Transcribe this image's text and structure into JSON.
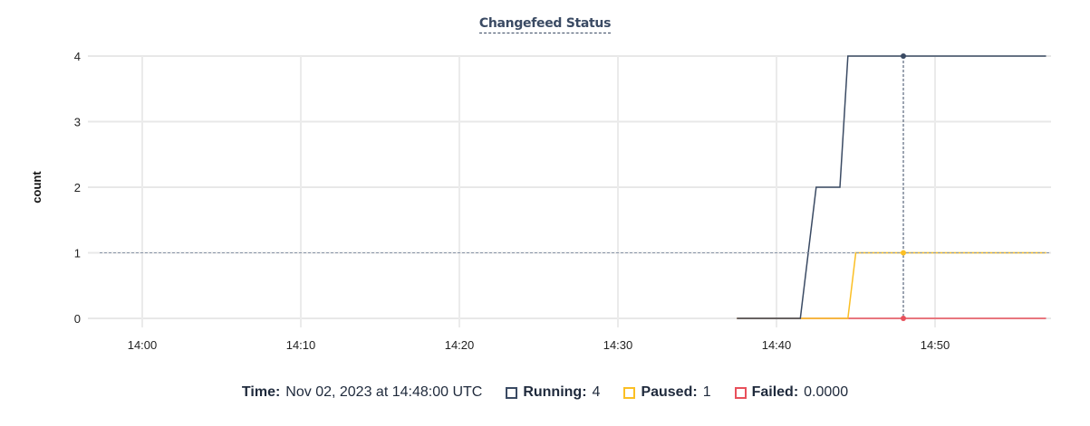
{
  "chart_data": {
    "type": "line",
    "title": "Changefeed Status",
    "ylabel": "count",
    "xlabel": "",
    "ylim": [
      0,
      4
    ],
    "yticks": [
      "0",
      "1",
      "2",
      "3",
      "4"
    ],
    "xlim": [
      "13:57:20",
      "14:57:20"
    ],
    "xticks": [
      "14:00",
      "14:10",
      "14:20",
      "14:30",
      "14:40",
      "14:50"
    ],
    "grid": true,
    "series": [
      {
        "name": "Running",
        "color": "#3a4a63",
        "points": [
          [
            "14:37:30",
            0
          ],
          [
            "14:41:30",
            0
          ],
          [
            "14:42:30",
            2
          ],
          [
            "14:44:00",
            2
          ],
          [
            "14:44:30",
            4
          ],
          [
            "14:57:00",
            4
          ]
        ]
      },
      {
        "name": "Paused",
        "color": "#fbbf24",
        "points": [
          [
            "14:37:30",
            0
          ],
          [
            "14:44:30",
            0
          ],
          [
            "14:45:00",
            1
          ],
          [
            "14:57:00",
            1
          ]
        ]
      },
      {
        "name": "Failed",
        "color": "#e8505b",
        "points": [
          [
            "14:37:30",
            0
          ],
          [
            "14:57:00",
            0
          ]
        ]
      }
    ],
    "hover": {
      "time": "14:48:00",
      "value_line": 1
    }
  },
  "legend": {
    "time_label": "Time:",
    "time_value": "Nov 02, 2023 at 14:48:00 UTC",
    "items": [
      {
        "label": "Running:",
        "value": "4",
        "color": "#3a4a63"
      },
      {
        "label": "Paused:",
        "value": "1",
        "color": "#fbbf24"
      },
      {
        "label": "Failed:",
        "value": "0.0000",
        "color": "#e8505b"
      }
    ]
  }
}
